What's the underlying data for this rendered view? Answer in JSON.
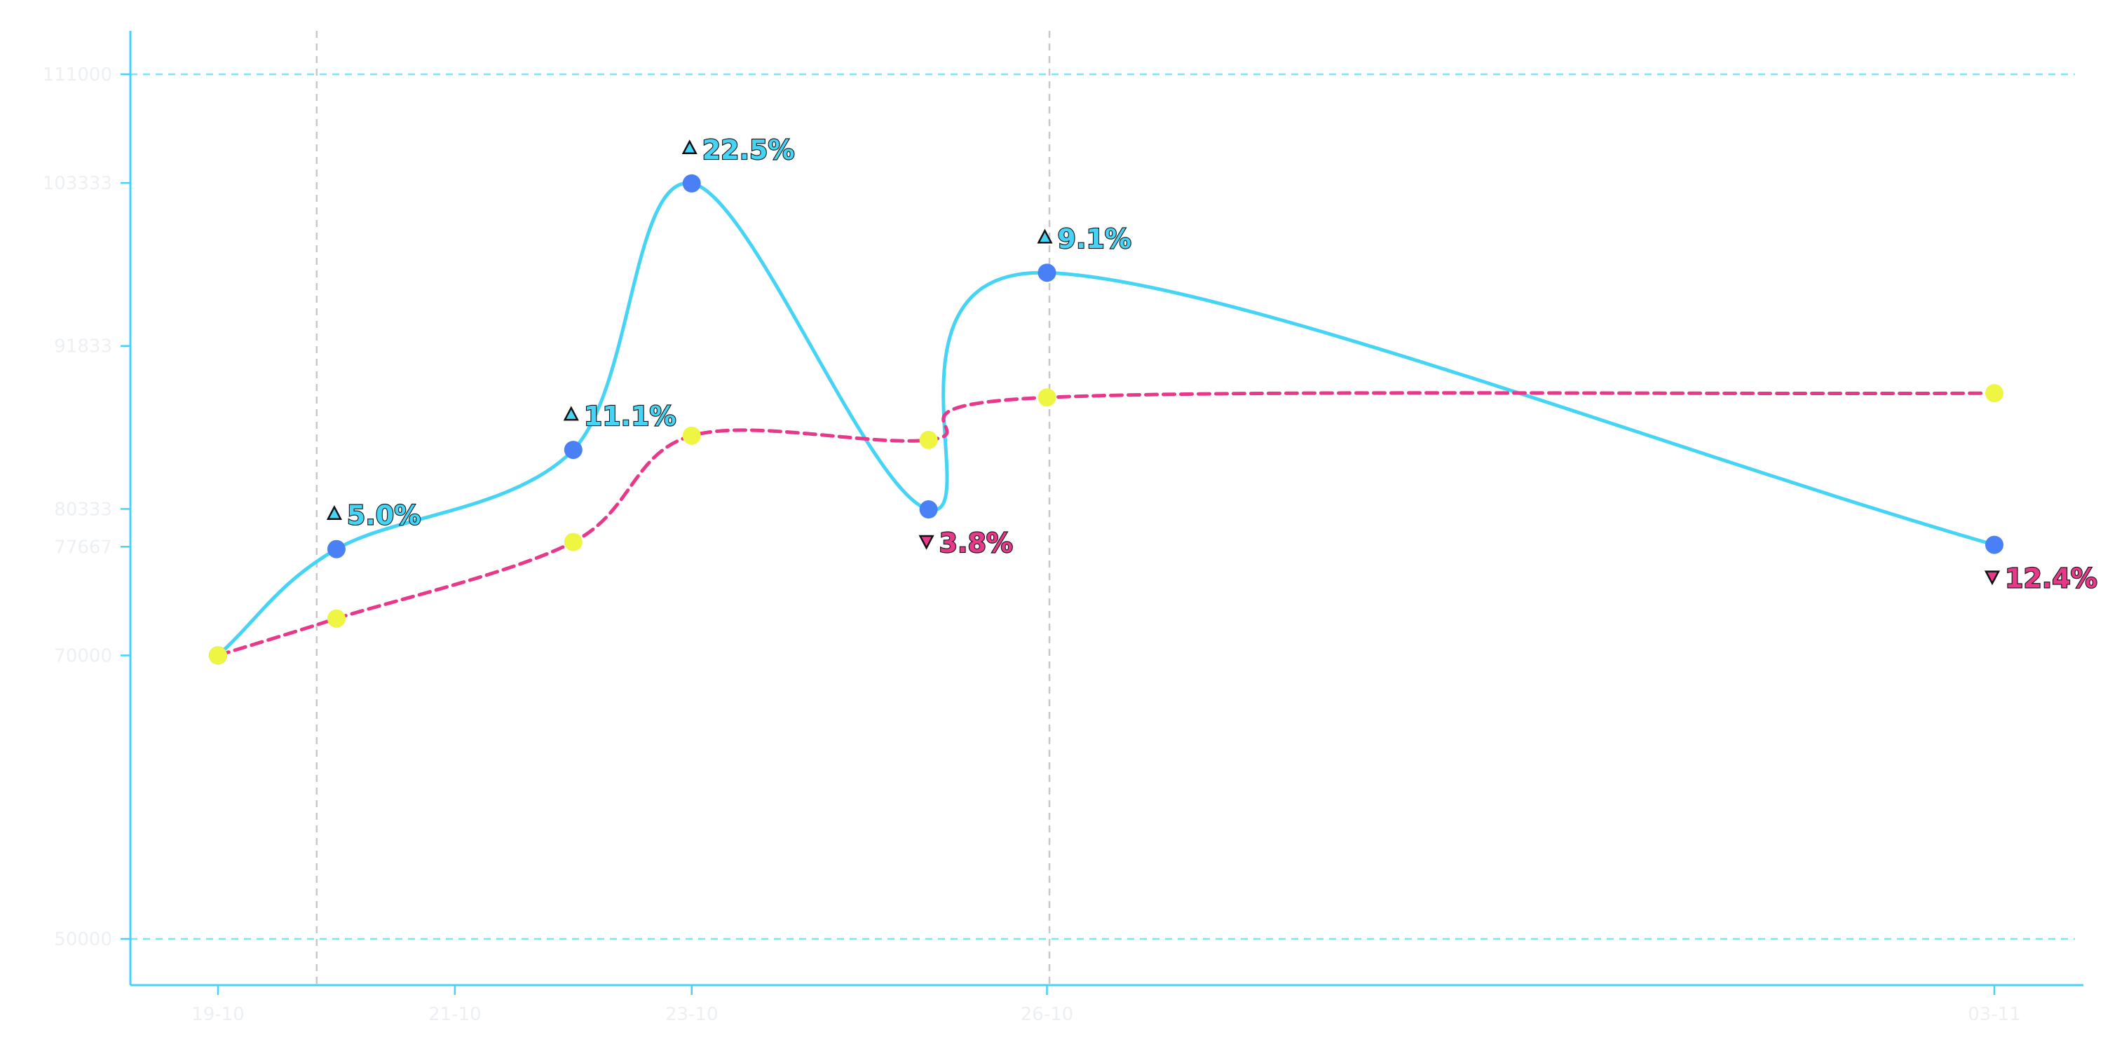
{
  "chart_data": {
    "type": "line",
    "title": "",
    "xlabel": "",
    "ylabel": "",
    "ylim": [
      40000,
      114000
    ],
    "grid": false,
    "x": [
      "2023-10-19",
      "2023-10-20",
      "2023-10-22",
      "2023-10-23",
      "2023-10-25",
      "2023-10-26",
      "2023-11-03"
    ],
    "x_ticks": [
      "19-10",
      "21-10",
      "23-10",
      "26-10",
      "03-11"
    ],
    "x_tick_values": [
      "2023-10-19",
      "2023-10-21",
      "2023-10-23",
      "2023-10-26",
      "2023-11-03"
    ],
    "y_ticks": [
      "50000",
      "70000",
      "77667",
      "80333",
      "91833",
      "103333",
      "111000"
    ],
    "y_tick_values": [
      50000,
      70000,
      77667,
      80333,
      91833,
      103333,
      111000
    ],
    "reference_lines": {
      "horizontal": [
        50000,
        111000
      ],
      "vertical": [
        "2023-10-19T20:00",
        "2023-10-26T00:30"
      ]
    },
    "series": [
      {
        "values": [
          70000,
          77500,
          84500,
          103300,
          80300,
          97000,
          77800
        ],
        "line_color": "#45d4f5",
        "marker_color": "#4a80f5",
        "style": "solid"
      },
      {
        "values": [
          70000,
          72600,
          78000,
          85500,
          85200,
          88200,
          88500
        ],
        "line_color": "#e8388a",
        "marker_color": "#eef542",
        "style": "dashed"
      }
    ],
    "annotations": [
      {
        "x": "2023-10-20",
        "y": 77500,
        "text": "5.0%",
        "direction": "up"
      },
      {
        "x": "2023-10-22",
        "y": 84500,
        "text": "11.1%",
        "direction": "up"
      },
      {
        "x": "2023-10-23",
        "y": 103300,
        "text": "22.5%",
        "direction": "up"
      },
      {
        "x": "2023-10-25",
        "y": 80300,
        "text": "3.8%",
        "direction": "down"
      },
      {
        "x": "2023-10-26",
        "y": 97000,
        "text": "9.1%",
        "direction": "up"
      },
      {
        "x": "2023-11-03",
        "y": 77800,
        "text": "12.4%",
        "direction": "down"
      }
    ],
    "colors": {
      "axis": "#45d4f5",
      "hline": "#7fe3f7",
      "vline": "#c8c8c8",
      "tick_text": "#eceff3",
      "up": "#45d4f5",
      "down": "#e8388a"
    }
  }
}
